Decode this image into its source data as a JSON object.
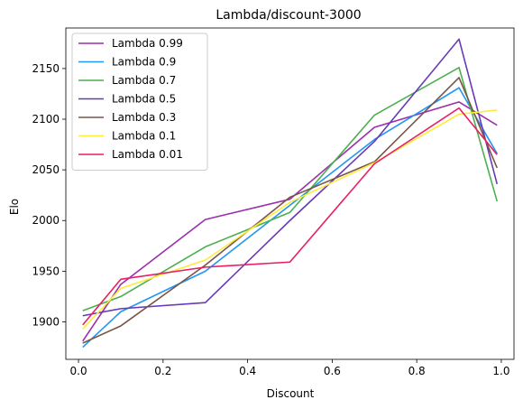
{
  "chart_data": {
    "type": "line",
    "title": "Lambda/discount-3000",
    "xlabel": "Discount",
    "ylabel": "Elo",
    "xlim": [
      -0.03,
      1.03
    ],
    "ylim": [
      1863,
      2190
    ],
    "xticks": [
      0.0,
      0.2,
      0.4,
      0.6,
      0.8,
      1.0
    ],
    "xtick_labels": [
      "0.0",
      "0.2",
      "0.4",
      "0.6",
      "0.8",
      "1.0"
    ],
    "yticks": [
      1900,
      1950,
      2000,
      2050,
      2100,
      2150
    ],
    "ytick_labels": [
      "1900",
      "1950",
      "2000",
      "2050",
      "2100",
      "2150"
    ],
    "grid": false,
    "legend_position": "top-left",
    "x": [
      0.01,
      0.1,
      0.3,
      0.5,
      0.7,
      0.9,
      0.99
    ],
    "series": [
      {
        "name": "Lambda 0.99",
        "color": "#9b2fae",
        "values": [
          1881,
          1937,
          2001,
          2021,
          2092,
          2117,
          2094
        ]
      },
      {
        "name": "Lambda 0.9",
        "color": "#2196f3",
        "values": [
          1875,
          1910,
          1950,
          2015,
          2080,
          2131,
          2066
        ]
      },
      {
        "name": "Lambda 0.7",
        "color": "#4caf50",
        "values": [
          1911,
          1925,
          1974,
          2008,
          2104,
          2151,
          2019
        ]
      },
      {
        "name": "Lambda 0.5",
        "color": "#673ab7",
        "values": [
          1906,
          1913,
          1919,
          2000,
          2078,
          2179,
          2036
        ]
      },
      {
        "name": "Lambda 0.3",
        "color": "#795548",
        "values": [
          1879,
          1896,
          1956,
          2023,
          2058,
          2141,
          2052
        ]
      },
      {
        "name": "Lambda 0.1",
        "color": "#ffeb3b",
        "values": [
          1893,
          1933,
          1961,
          2018,
          2057,
          2105,
          2109
        ]
      },
      {
        "name": "Lambda 0.01",
        "color": "#e91e63",
        "values": [
          1897,
          1942,
          1954,
          1959,
          2056,
          2111,
          2065
        ]
      }
    ]
  }
}
